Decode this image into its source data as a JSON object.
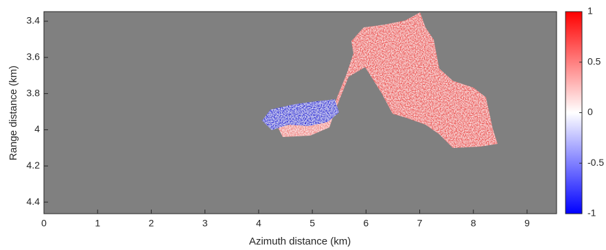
{
  "chart_data": {
    "type": "heatmap",
    "x_label": "Azimuth distance (km)",
    "y_label": "Range distance (km)",
    "xlim": [
      0,
      9.55
    ],
    "xticks": [
      0,
      1,
      2,
      3,
      4,
      5,
      6,
      7,
      8,
      9
    ],
    "ylim": [
      3.347,
      4.464
    ],
    "yticks": [
      3.4,
      3.6,
      3.8,
      4,
      4.2,
      4.4
    ],
    "y_reversed": true,
    "clim": [
      -1,
      1
    ],
    "cticks": [
      -1,
      -0.5,
      0,
      0.5,
      1
    ],
    "colormap": [
      "#0000ff",
      "#ffffff",
      "#ff0000"
    ],
    "background": "#808080"
  }
}
